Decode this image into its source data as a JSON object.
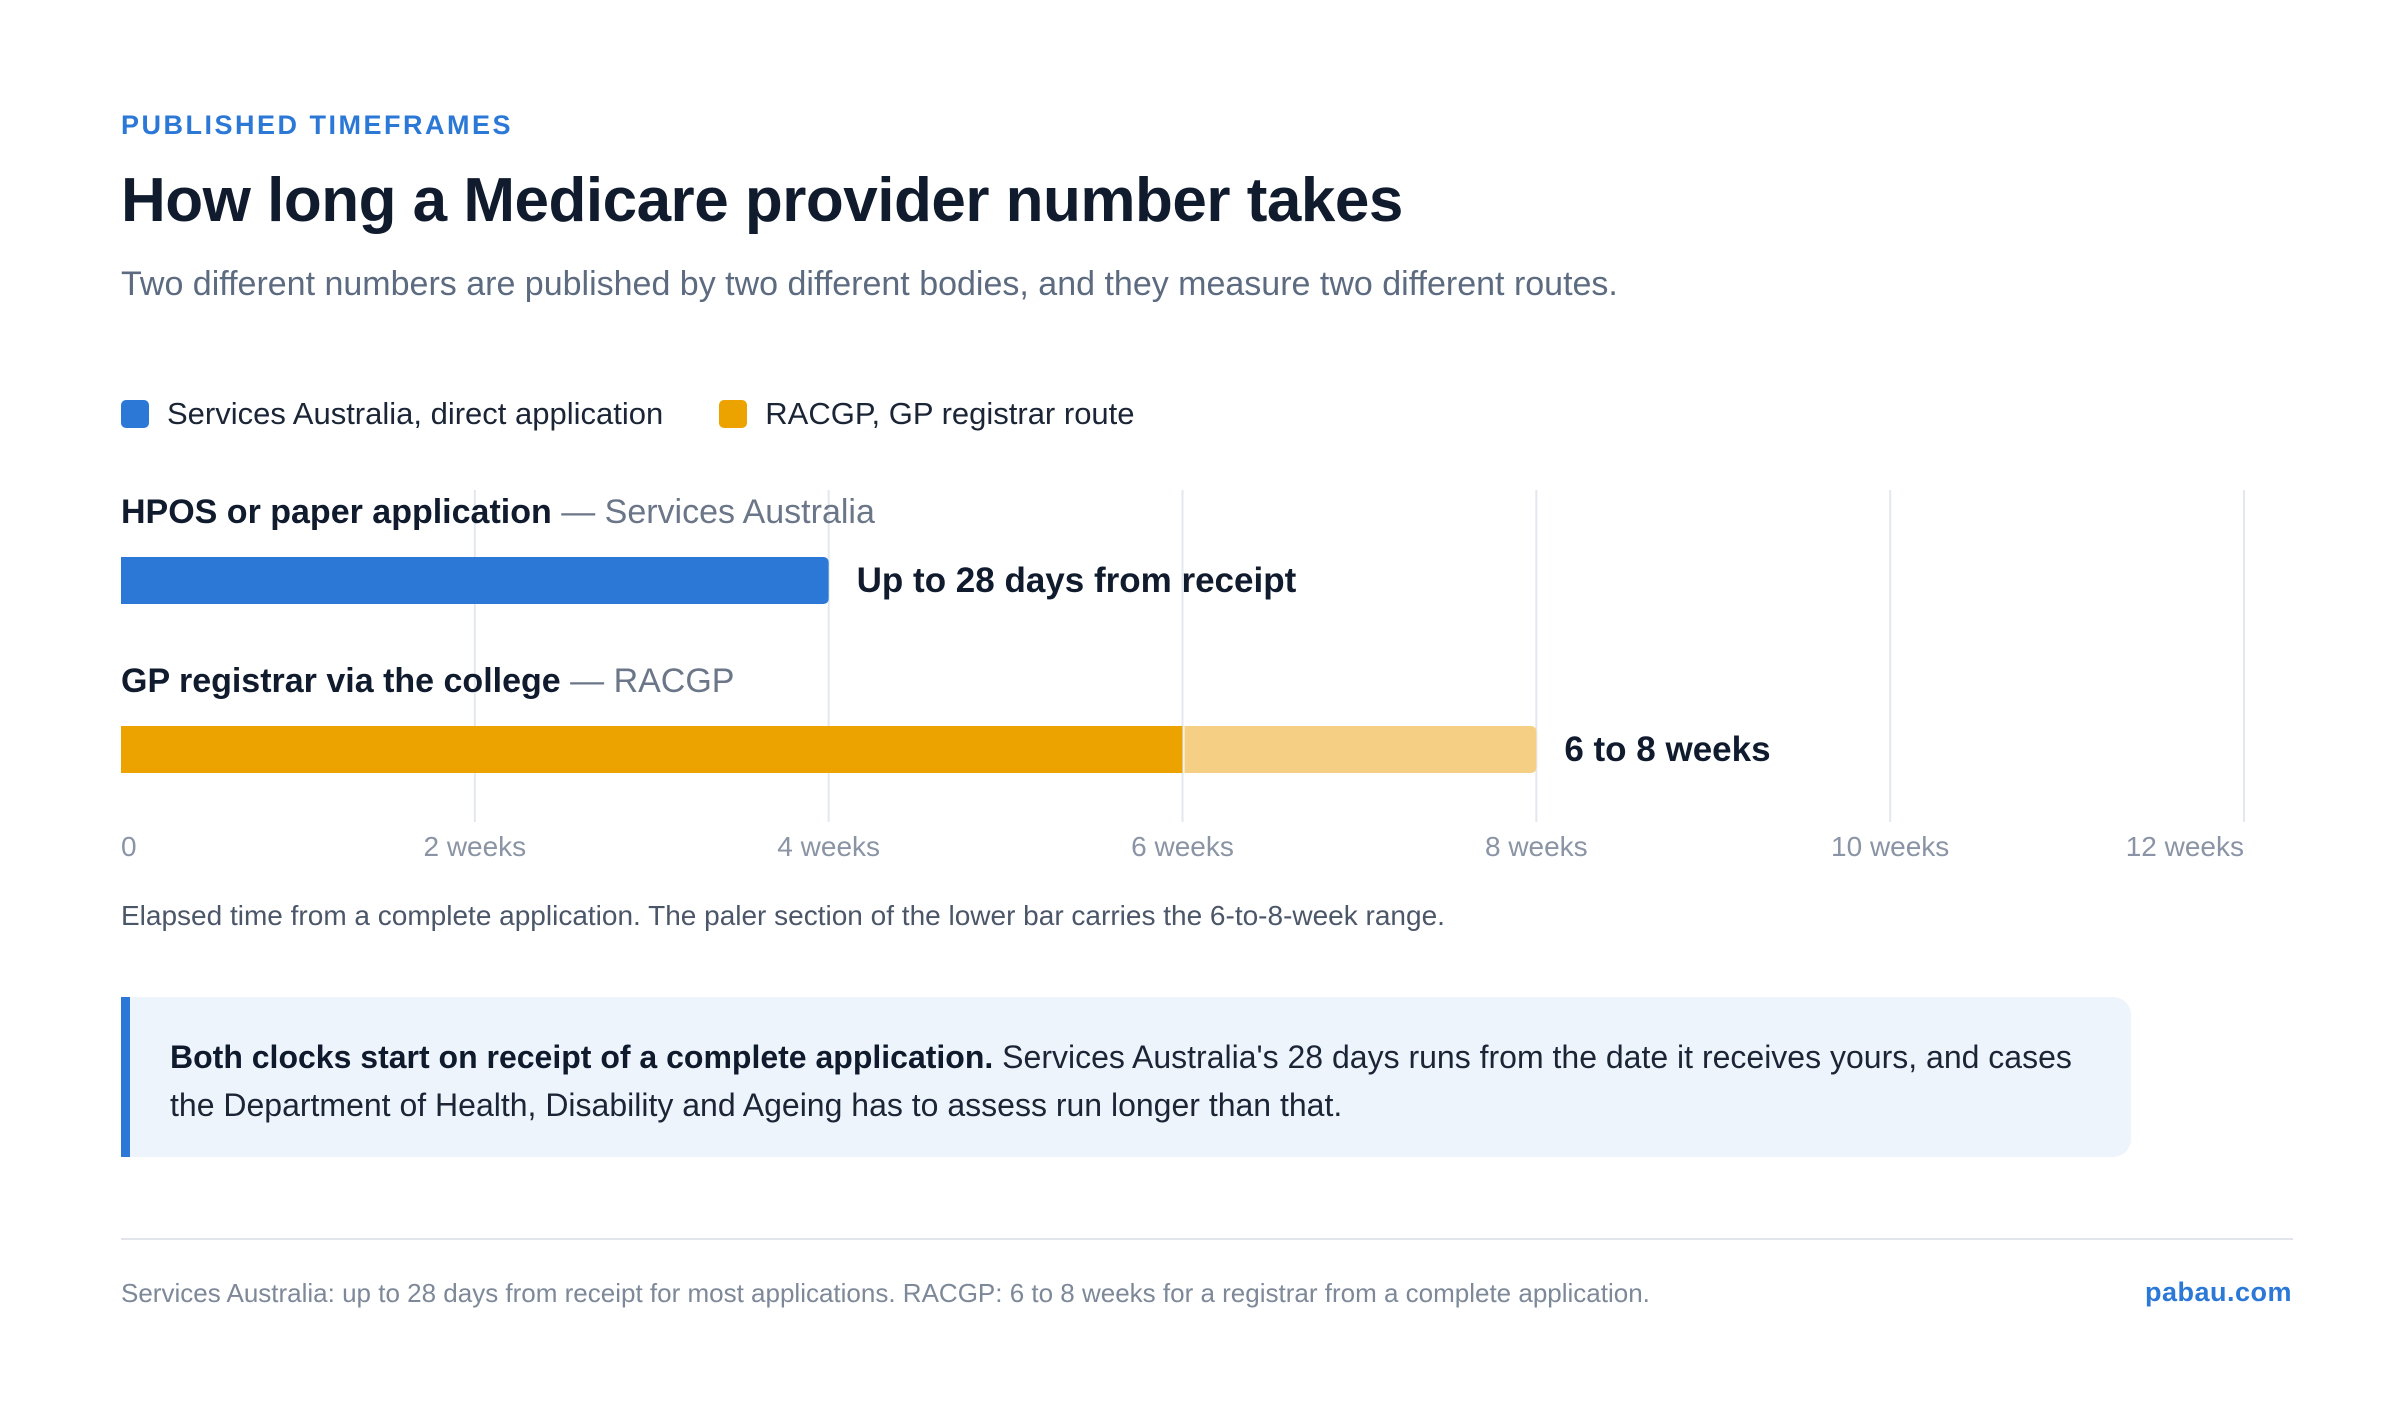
{
  "eyebrow": "PUBLISHED TIMEFRAMES",
  "title": "How long a Medicare provider number takes",
  "subtitle": "Two different numbers are published by two different bodies, and they measure two different routes.",
  "legend": [
    {
      "label": "Services Australia, direct application",
      "color": "#2b78d6"
    },
    {
      "label": "RACGP, GP registrar route",
      "color": "#eca300"
    }
  ],
  "chart_data": {
    "type": "bar",
    "orientation": "horizontal",
    "x_unit": "weeks",
    "xlim": [
      0,
      12
    ],
    "x_ticks": [
      {
        "value": 0,
        "label": "0"
      },
      {
        "value": 2,
        "label": "2 weeks"
      },
      {
        "value": 4,
        "label": "4 weeks"
      },
      {
        "value": 6,
        "label": "6 weeks"
      },
      {
        "value": 8,
        "label": "8 weeks"
      },
      {
        "value": 10,
        "label": "10 weeks"
      },
      {
        "value": 12,
        "label": "12 weeks"
      }
    ],
    "grid": true,
    "legend_position": "top-left",
    "rows": [
      {
        "name": "HPOS or paper application",
        "source": "Services Australia",
        "start": 0,
        "end": 4,
        "range_end": null,
        "value_label": "Up to 28 days from receipt",
        "color": "#2b78d6"
      },
      {
        "name": "GP registrar via the college",
        "source": "RACGP",
        "start": 0,
        "end": 6,
        "range_end": 8,
        "value_label": "6 to 8 weeks",
        "color": "#eca300",
        "range_color": "#f5d084"
      }
    ]
  },
  "caption": "Elapsed time from a complete application. The paler section of the lower bar carries the 6-to-8-week range.",
  "callout": {
    "bold": "Both clocks start on receipt of a complete application.",
    "text": " Services Australia's 28 days runs from the date it receives yours, and cases the Department of Health, Disability and Ageing has to assess run longer than that."
  },
  "footnote": "Services Australia: up to 28 days from receipt for most applications. RACGP: 6 to 8 weeks for a registrar from a complete application.",
  "brand": "pabau.com"
}
